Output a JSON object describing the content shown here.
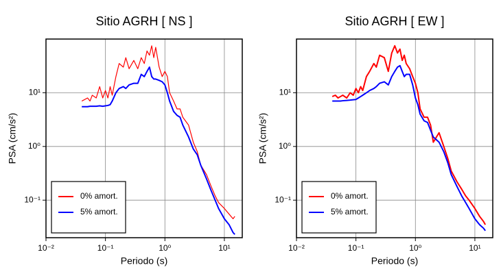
{
  "chart_data": [
    {
      "type": "line",
      "title": "Sitio AGRH [ NS ]",
      "x_label": "Periodo (s)",
      "y_label": "PSA (cm/s²)",
      "log_x": true,
      "log_y": true,
      "grid": true,
      "legend": "lower left",
      "xlim": [
        0.01,
        20
      ],
      "ylim": [
        0.02,
        100
      ],
      "xticks": [
        {
          "value": 0.01,
          "label": "10⁻²"
        },
        {
          "value": 0.1,
          "label": "10⁻¹"
        },
        {
          "value": 1,
          "label": "10⁰"
        },
        {
          "value": 10,
          "label": "10¹"
        }
      ],
      "yticks": [
        {
          "value": 0.1,
          "label": "10⁻¹"
        },
        {
          "value": 1,
          "label": "10⁰"
        },
        {
          "value": 10,
          "label": "10¹"
        }
      ],
      "x": [
        0.04,
        0.045,
        0.05,
        0.055,
        0.06,
        0.07,
        0.08,
        0.09,
        0.1,
        0.11,
        0.12,
        0.13,
        0.15,
        0.17,
        0.2,
        0.22,
        0.25,
        0.3,
        0.35,
        0.4,
        0.45,
        0.5,
        0.55,
        0.6,
        0.65,
        0.7,
        0.8,
        0.9,
        1.0,
        1.1,
        1.2,
        1.4,
        1.6,
        1.8,
        2.0,
        2.5,
        3,
        3.5,
        4,
        5,
        6,
        7,
        8,
        10,
        12,
        14,
        15
      ],
      "series": [
        {
          "name": "0% amort.",
          "color": "#ff0000",
          "width": 1.2,
          "values": [
            7,
            7.5,
            8,
            7,
            9,
            8,
            13,
            8,
            11,
            8,
            13,
            9,
            20,
            35,
            30,
            45,
            28,
            40,
            28,
            45,
            35,
            60,
            50,
            75,
            45,
            70,
            30,
            20,
            25,
            20,
            10,
            7,
            5,
            5,
            3.5,
            2.5,
            1.2,
            0.8,
            0.45,
            0.3,
            0.18,
            0.12,
            0.09,
            0.07,
            0.055,
            0.045,
            0.05
          ]
        },
        {
          "name": "5% amort.",
          "color": "#0000ff",
          "width": 2,
          "values": [
            5.5,
            5.5,
            5.5,
            5.6,
            5.6,
            5.6,
            5.7,
            5.6,
            5.7,
            5.8,
            6,
            7,
            10,
            12,
            13,
            12,
            14,
            15,
            15,
            22,
            20,
            25,
            30,
            20,
            18,
            18,
            17,
            16,
            14,
            10,
            7,
            4.5,
            3.8,
            3.5,
            2.5,
            1.5,
            0.9,
            0.7,
            0.45,
            0.25,
            0.15,
            0.1,
            0.07,
            0.045,
            0.035,
            0.025,
            0.023
          ]
        }
      ]
    },
    {
      "type": "line",
      "title": "Sitio AGRH [ EW ]",
      "x_label": "Periodo (s)",
      "y_label": "PSA (cm/s²)",
      "log_x": true,
      "log_y": true,
      "grid": true,
      "legend": "lower left",
      "xlim": [
        0.01,
        20
      ],
      "ylim": [
        0.02,
        100
      ],
      "xticks": [
        {
          "value": 0.01,
          "label": "10⁻²"
        },
        {
          "value": 0.1,
          "label": "10⁻¹"
        },
        {
          "value": 1,
          "label": "10⁰"
        },
        {
          "value": 10,
          "label": "10¹"
        }
      ],
      "yticks": [
        {
          "value": 0.1,
          "label": "10⁻¹"
        },
        {
          "value": 1,
          "label": "10⁰"
        },
        {
          "value": 10,
          "label": "10¹"
        }
      ],
      "x": [
        0.04,
        0.045,
        0.05,
        0.055,
        0.06,
        0.07,
        0.08,
        0.09,
        0.1,
        0.11,
        0.12,
        0.13,
        0.15,
        0.17,
        0.2,
        0.22,
        0.25,
        0.3,
        0.35,
        0.4,
        0.45,
        0.5,
        0.55,
        0.6,
        0.65,
        0.7,
        0.8,
        0.9,
        1.0,
        1.1,
        1.2,
        1.4,
        1.6,
        1.8,
        2.0,
        2.5,
        3,
        3.5,
        4,
        5,
        6,
        7,
        8,
        10,
        12,
        14,
        15
      ],
      "series": [
        {
          "name": "0% amort.",
          "color": "#ff0000",
          "width": 2,
          "values": [
            8.5,
            9,
            8,
            8.5,
            9,
            8,
            10,
            9,
            12,
            10,
            13,
            11,
            20,
            25,
            35,
            30,
            50,
            45,
            25,
            55,
            75,
            55,
            65,
            40,
            50,
            35,
            28,
            20,
            15,
            10,
            5,
            3.5,
            3.5,
            2.5,
            1.2,
            1.8,
            1.0,
            0.6,
            0.35,
            0.22,
            0.16,
            0.12,
            0.1,
            0.07,
            0.05,
            0.04,
            0.035
          ]
        },
        {
          "name": "5% amort.",
          "color": "#0000ff",
          "width": 2,
          "values": [
            7,
            7,
            7,
            7,
            7.1,
            7.2,
            7.3,
            7.4,
            7.5,
            8,
            8.5,
            9,
            10,
            11,
            12,
            13,
            15,
            16,
            14,
            20,
            25,
            30,
            32,
            25,
            20,
            22,
            22,
            14,
            8,
            6,
            4,
            3,
            2.8,
            2,
            1.5,
            1.2,
            0.8,
            0.5,
            0.3,
            0.18,
            0.12,
            0.09,
            0.07,
            0.045,
            0.035,
            0.03,
            0.027
          ]
        }
      ]
    }
  ]
}
